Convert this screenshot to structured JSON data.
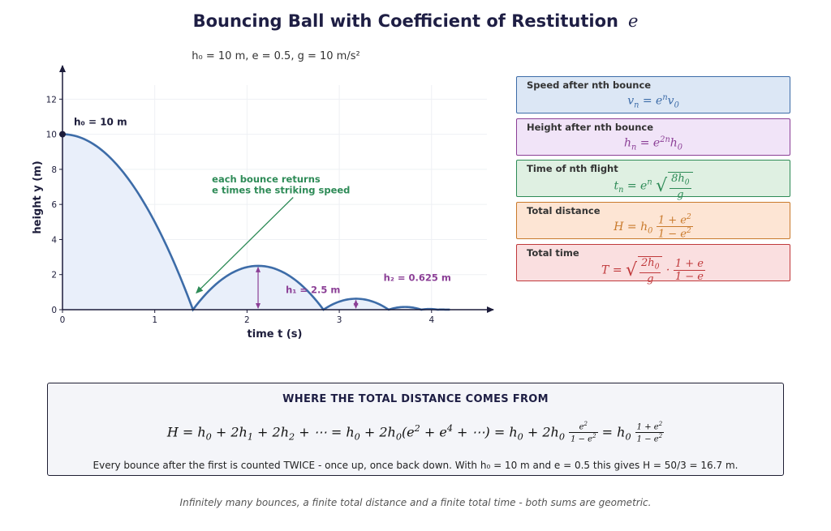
{
  "title": {
    "text": "Bouncing Ball with Coefficient of Restitution",
    "var": "e"
  },
  "params": {
    "text": "h₀ = 10 m,  e = 0.5,  g = 10 m/s²"
  },
  "colors": {
    "curve": "#3d6ca8",
    "fill": "#e9effa",
    "annotation": "#2e8b57",
    "height_marker": "#8b3f96",
    "axis": "#1c1c3a"
  },
  "chart_data": {
    "type": "line",
    "xlabel": "time  t  (s)",
    "ylabel": "height  y  (m)",
    "xlim": [
      0,
      4.6
    ],
    "ylim": [
      0,
      12.8
    ],
    "xticks": [
      "0",
      "1",
      "2",
      "3",
      "4"
    ],
    "yticks": [
      "0",
      "2",
      "4",
      "6",
      "8",
      "10",
      "12"
    ],
    "grid": true,
    "h0": 10,
    "e": 0.5,
    "g": 10,
    "peaks": [
      {
        "t": 0,
        "h": 10
      },
      {
        "t": 2.12,
        "h": 2.5
      },
      {
        "t": 3.18,
        "h": 0.625
      },
      {
        "t": 3.71,
        "h": 0.156
      },
      {
        "t": 3.98,
        "h": 0.039
      }
    ],
    "impacts": [
      1.414,
      2.828,
      3.536,
      3.889,
      4.066,
      4.154
    ]
  },
  "annotations": {
    "h0_label": "h₀ = 10 m",
    "h1_label": "h₁ = 2.5 m",
    "h2_label": "h₂ = 0.625 m",
    "bounce_note_1": "each bounce returns",
    "bounce_note_2": "e times the striking speed"
  },
  "cards": [
    {
      "title": "Speed after nth bounce",
      "formula": "vₙ = eⁿ v₀",
      "color": "#3d6ca8",
      "bg": "#dce7f5"
    },
    {
      "title": "Height after nth bounce",
      "formula": "hₙ = e²ⁿ h₀",
      "color": "#8b3f96",
      "bg": "#f1e4f8"
    },
    {
      "title": "Time of nth flight",
      "formula": "tₙ = eⁿ √(8h₀/g)",
      "color": "#2e8b57",
      "bg": "#dff0e2"
    },
    {
      "title": "Total distance",
      "formula": "H = h₀ (1 + e²)/(1 − e²)",
      "color": "#c97a2c",
      "bg": "#fde5d4"
    },
    {
      "title": "Total time",
      "formula": "T = √(2h₀/g) · (1 + e)/(1 − e)",
      "color": "#c0393b",
      "bg": "#fadfe0"
    }
  ],
  "derivation": {
    "heading": "WHERE THE TOTAL DISTANCE COMES FROM",
    "equation": "H = h₀ + 2h₁ + 2h₂ + ⋯ = h₀ + 2h₀(e² + e⁴ + ⋯) = h₀ + 2h₀ e²/(1 − e²) = h₀ (1 + e²)/(1 − e²)",
    "note": "Every bounce after the first is counted TWICE - once up, once back down. With h₀ = 10 m and e = 0.5 this gives H = 50/3 = 16.7 m."
  },
  "footer": "Infinitely many bounces, a finite total distance and a finite total time - both sums are geometric."
}
